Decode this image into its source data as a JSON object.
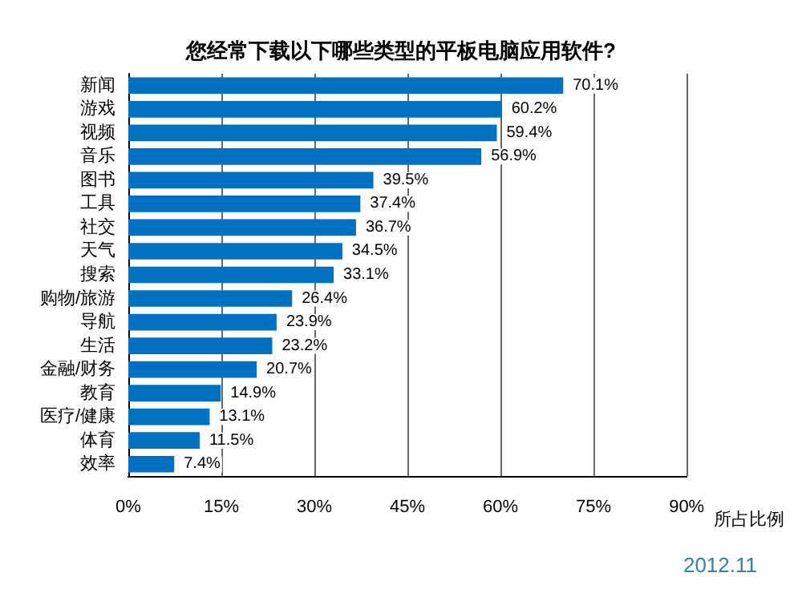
{
  "chart_data": {
    "type": "bar",
    "orientation": "horizontal",
    "title": "您经常下载以下哪些类型的平板电脑应用软件?",
    "xlabel": "所占比例",
    "categories": [
      "新闻",
      "游戏",
      "视频",
      "音乐",
      "图书",
      "工具",
      "社交",
      "天气",
      "搜索",
      "购物/旅游",
      "导航",
      "生活",
      "金融/财务",
      "教育",
      "医疗/健康",
      "体育",
      "效率"
    ],
    "values": [
      70.1,
      60.2,
      59.4,
      56.9,
      39.5,
      37.4,
      36.7,
      34.5,
      33.1,
      26.4,
      23.9,
      23.2,
      20.7,
      14.9,
      13.1,
      11.5,
      7.4
    ],
    "value_labels": [
      "70.1%",
      "60.2%",
      "59.4%",
      "56.9%",
      "39.5%",
      "37.4%",
      "36.7%",
      "34.5%",
      "33.1%",
      "26.4%",
      "23.9%",
      "23.2%",
      "20.7%",
      "14.9%",
      "13.1%",
      "11.5%",
      "7.4%"
    ],
    "color": "#0070c0",
    "xlim": [
      0,
      90
    ],
    "xticks": [
      {
        "value": 0,
        "label": "0%"
      },
      {
        "value": 15,
        "label": "15%"
      },
      {
        "value": 30,
        "label": "30%"
      },
      {
        "value": 45,
        "label": "45%"
      },
      {
        "value": 60,
        "label": "60%"
      },
      {
        "value": 75,
        "label": "75%"
      },
      {
        "value": 90,
        "label": "90%"
      }
    ],
    "grid": "x",
    "annotations": [
      "2012.11"
    ]
  }
}
